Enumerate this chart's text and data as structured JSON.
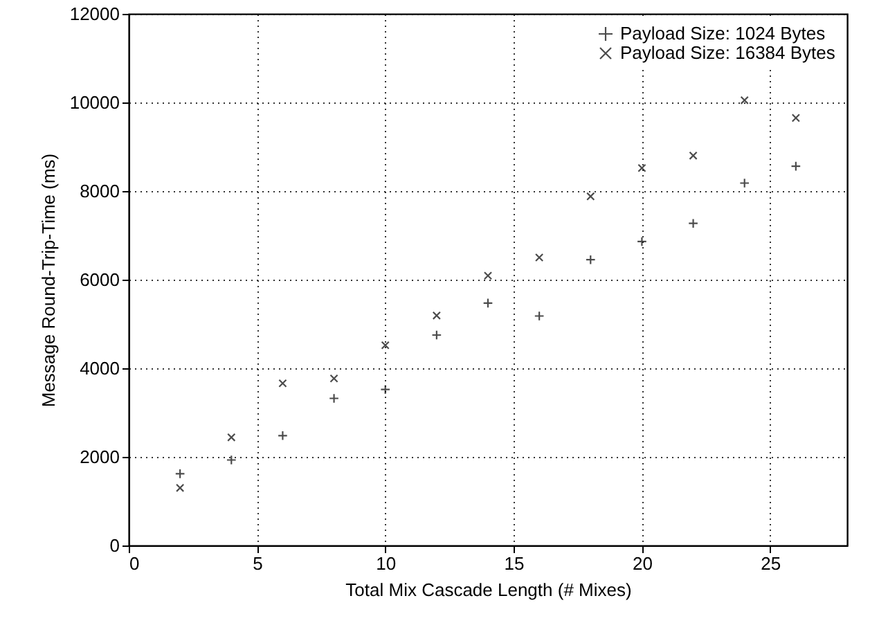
{
  "chart_data": {
    "type": "scatter",
    "xlabel": "Total Mix Cascade Length (# Mixes)",
    "ylabel": "Message Round-Trip-Time (ms)",
    "x": [
      2,
      4,
      6,
      8,
      10,
      12,
      14,
      16,
      18,
      20,
      22,
      24,
      26
    ],
    "series": [
      {
        "name": "Payload Size: 1024 Bytes",
        "color": "#000000",
        "marker": "plus",
        "values": [
          1620,
          1930,
          2480,
          3320,
          3520,
          4750,
          5470,
          5180,
          6450,
          6860,
          7270,
          8180,
          8560
        ]
      },
      {
        "name": "Payload Size: 16384 Bytes",
        "color": "#000000",
        "marker": "cross",
        "values": [
          1300,
          2440,
          3660,
          3770,
          4520,
          5190,
          6090,
          6500,
          7880,
          8520,
          8800,
          10050,
          9650
        ]
      }
    ],
    "xlim": [
      0,
      28
    ],
    "xticks": [
      0,
      5,
      10,
      15,
      20,
      25
    ],
    "ylim": [
      0,
      12000
    ],
    "yticks": [
      0,
      2000,
      4000,
      6000,
      8000,
      10000,
      12000
    ],
    "grid": true,
    "legend": "top right"
  }
}
